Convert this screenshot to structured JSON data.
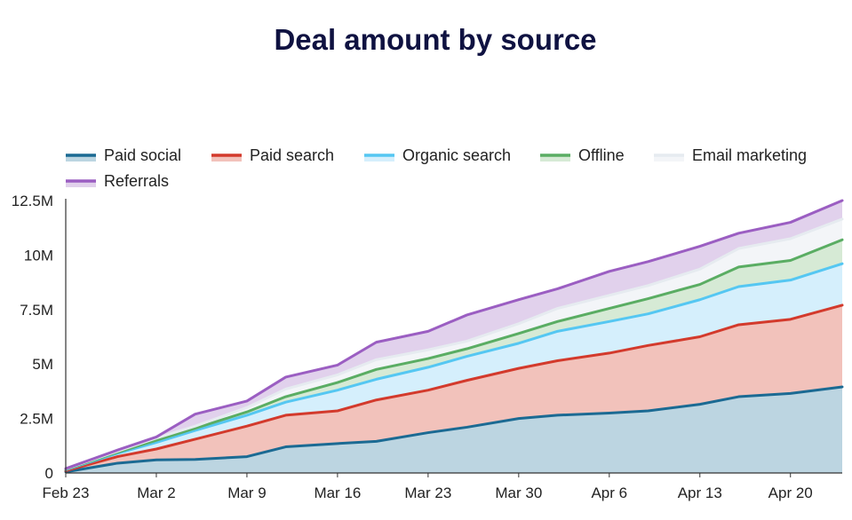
{
  "chart_data": {
    "type": "area",
    "stacked": true,
    "title": "Deal amount by source",
    "xlabel": "",
    "ylabel": "",
    "ylim": [
      0,
      12500000
    ],
    "y_ticks": [
      {
        "value": 0,
        "label": "0"
      },
      {
        "value": 2500000,
        "label": "2.5M"
      },
      {
        "value": 5000000,
        "label": "5M"
      },
      {
        "value": 7500000,
        "label": "7.5M"
      },
      {
        "value": 10000000,
        "label": "10M"
      },
      {
        "value": 12500000,
        "label": "12.5M"
      }
    ],
    "x_ticks": [
      {
        "day": 0,
        "label": "Feb 23"
      },
      {
        "day": 7,
        "label": "Mar 2"
      },
      {
        "day": 14,
        "label": "Mar 9"
      },
      {
        "day": 21,
        "label": "Mar 16"
      },
      {
        "day": 28,
        "label": "Mar 23"
      },
      {
        "day": 35,
        "label": "Mar 30"
      },
      {
        "day": 42,
        "label": "Apr 6"
      },
      {
        "day": 49,
        "label": "Apr 13"
      },
      {
        "day": 56,
        "label": "Apr 20"
      }
    ],
    "legend_position": "top-left",
    "x": [
      0,
      4,
      7,
      10,
      14,
      17,
      21,
      24,
      28,
      31,
      35,
      38,
      42,
      45,
      49,
      52,
      56,
      60
    ],
    "series": [
      {
        "name": "Paid social",
        "line_color": "#1b6a93",
        "fill_color": "#bcd5e1",
        "values": [
          0.05,
          0.45,
          0.6,
          0.62,
          0.75,
          1.2,
          1.35,
          1.45,
          1.85,
          2.1,
          2.5,
          2.65,
          2.75,
          2.85,
          3.15,
          3.5,
          3.65,
          3.95
        ]
      },
      {
        "name": "Paid search",
        "line_color": "#d33a2c",
        "fill_color": "#f2c2bb",
        "values": [
          0.1,
          0.75,
          1.1,
          1.55,
          2.15,
          2.65,
          2.85,
          3.35,
          3.8,
          4.25,
          4.8,
          5.15,
          5.5,
          5.85,
          6.25,
          6.8,
          7.05,
          7.7
        ]
      },
      {
        "name": "Organic search",
        "line_color": "#55c7f2",
        "fill_color": "#d5effc",
        "values": [
          0.15,
          0.9,
          1.4,
          1.95,
          2.65,
          3.25,
          3.8,
          4.3,
          4.85,
          5.35,
          5.95,
          6.5,
          6.95,
          7.3,
          7.95,
          8.55,
          8.85,
          9.6
        ]
      },
      {
        "name": "Offline",
        "line_color": "#5aad63",
        "fill_color": "#d6ead5",
        "values": [
          0.17,
          0.95,
          1.5,
          2.05,
          2.8,
          3.5,
          4.15,
          4.75,
          5.25,
          5.7,
          6.4,
          6.95,
          7.55,
          8.0,
          8.65,
          9.45,
          9.75,
          10.7
        ]
      },
      {
        "name": "Email marketing",
        "line_color": "#e6ebf0",
        "fill_color": "#f3f5f8",
        "values": [
          0.19,
          1.0,
          1.6,
          2.15,
          3.0,
          3.85,
          4.5,
          5.2,
          5.65,
          6.05,
          6.85,
          7.55,
          8.15,
          8.6,
          9.35,
          10.3,
          10.75,
          11.65
        ]
      },
      {
        "name": "Referrals",
        "line_color": "#9b5ec2",
        "fill_color": "#e1d1ec",
        "values": [
          0.2,
          1.05,
          1.65,
          2.7,
          3.3,
          4.4,
          4.95,
          6.0,
          6.5,
          7.25,
          7.95,
          8.45,
          9.25,
          9.7,
          10.4,
          11.0,
          11.5,
          12.5
        ]
      }
    ],
    "units_note": "values in millions"
  }
}
